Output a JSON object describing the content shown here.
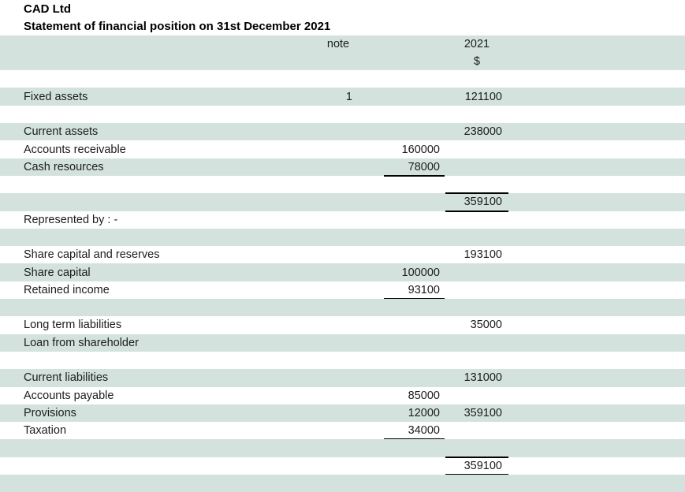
{
  "title": {
    "company": "CAD Ltd",
    "statement": "Statement of financial position on 31st December 2021"
  },
  "columns": {
    "note": "note",
    "year": "2021",
    "currency": "$"
  },
  "colors": {
    "band_green": "#d3e2dc",
    "text": "#1c1c1c",
    "rule": "#000000"
  },
  "rows": [
    {
      "band": "white"
    },
    {
      "band": "green",
      "label": "Fixed assets",
      "note": "1",
      "amount": "121100"
    },
    {
      "band": "white"
    },
    {
      "band": "green",
      "label": "Current assets",
      "amount": "238000"
    },
    {
      "band": "white",
      "label": "Accounts receivable",
      "mid": "160000"
    },
    {
      "band": "green",
      "label": "Cash resources",
      "mid": "78000",
      "mid_underline": true
    },
    {
      "band": "white"
    },
    {
      "band": "green",
      "amount": "359100",
      "amount_top_border": true,
      "amount_bottom_border": true
    },
    {
      "band": "white",
      "label": "Represented by : -"
    },
    {
      "band": "green"
    },
    {
      "band": "white",
      "label": "Share capital and reserves",
      "amount": "193100"
    },
    {
      "band": "green",
      "label": "Share capital",
      "mid": "100000"
    },
    {
      "band": "white",
      "label": "Retained income",
      "mid": "93100",
      "mid_underline": true
    },
    {
      "band": "green"
    },
    {
      "band": "white",
      "label": "Long term liabilities",
      "amount": "35000"
    },
    {
      "band": "green",
      "label": "Loan from shareholder"
    },
    {
      "band": "white"
    },
    {
      "band": "green",
      "label": "Current liabilities",
      "amount": "131000"
    },
    {
      "band": "white",
      "label": "Accounts payable",
      "mid": "85000"
    },
    {
      "band": "green",
      "label": "Provisions",
      "mid": "12000",
      "amount": "359100"
    },
    {
      "band": "white",
      "label": "Taxation",
      "mid": "34000",
      "mid_underline": true
    },
    {
      "band": "green"
    },
    {
      "band": "white",
      "amount": "359100",
      "amount_top_border": true,
      "amount_bottom_border": true
    },
    {
      "band": "green"
    }
  ]
}
